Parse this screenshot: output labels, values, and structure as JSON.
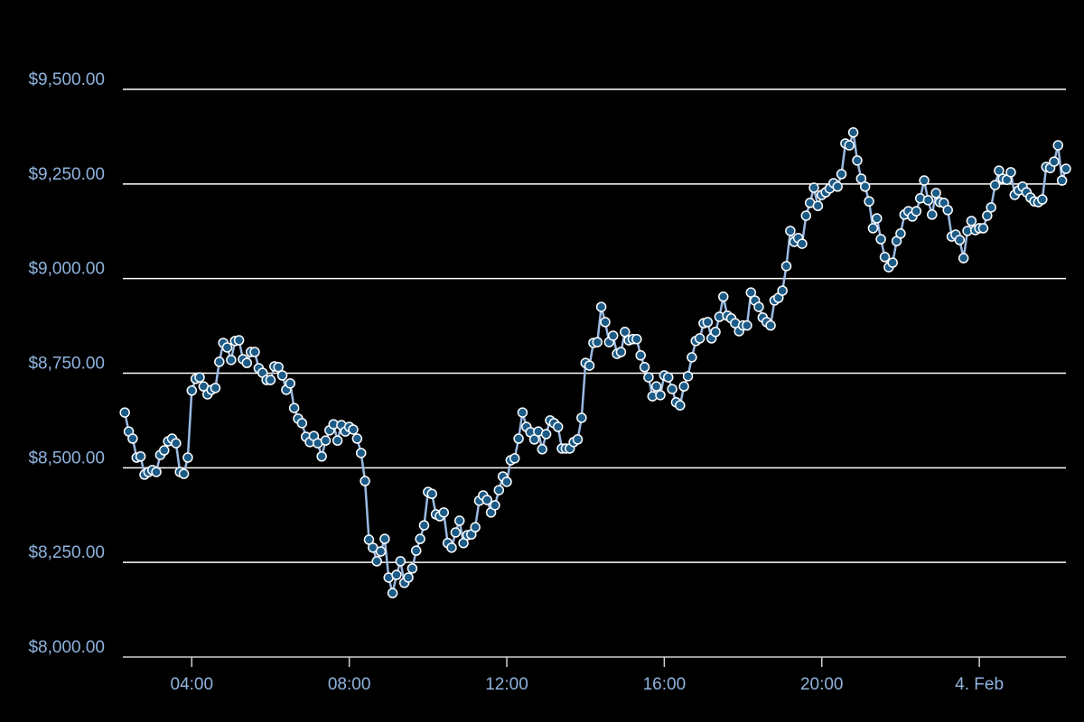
{
  "chart_data": {
    "type": "line",
    "x": [
      2.3,
      2.4,
      2.5,
      2.6,
      2.7,
      2.8,
      2.9,
      3.0,
      3.1,
      3.2,
      3.3,
      3.4,
      3.5,
      3.6,
      3.7,
      3.8,
      3.9,
      4.0,
      4.1,
      4.2,
      4.3,
      4.4,
      4.5,
      4.6,
      4.7,
      4.8,
      4.9,
      5.0,
      5.1,
      5.2,
      5.3,
      5.4,
      5.5,
      5.6,
      5.7,
      5.8,
      5.9,
      6.0,
      6.1,
      6.2,
      6.3,
      6.4,
      6.5,
      6.6,
      6.7,
      6.8,
      6.9,
      7.0,
      7.1,
      7.2,
      7.3,
      7.4,
      7.5,
      7.6,
      7.7,
      7.8,
      7.9,
      8.0,
      8.1,
      8.2,
      8.3,
      8.4,
      8.5,
      8.6,
      8.7,
      8.8,
      8.9,
      9.0,
      9.1,
      9.2,
      9.3,
      9.4,
      9.5,
      9.6,
      9.7,
      9.8,
      9.9,
      10.0,
      10.1,
      10.2,
      10.3,
      10.4,
      10.5,
      10.6,
      10.7,
      10.8,
      10.9,
      11.0,
      11.1,
      11.2,
      11.3,
      11.4,
      11.5,
      11.6,
      11.7,
      11.8,
      11.9,
      12.0,
      12.1,
      12.2,
      12.3,
      12.4,
      12.5,
      12.6,
      12.7,
      12.8,
      12.9,
      13.0,
      13.1,
      13.2,
      13.3,
      13.4,
      13.5,
      13.6,
      13.7,
      13.8,
      13.9,
      14.0,
      14.1,
      14.2,
      14.3,
      14.4,
      14.5,
      14.6,
      14.7,
      14.8,
      14.9,
      15.0,
      15.1,
      15.2,
      15.3,
      15.4,
      15.5,
      15.6,
      15.7,
      15.8,
      15.9,
      16.0,
      16.1,
      16.2,
      16.3,
      16.4,
      16.5,
      16.6,
      16.7,
      16.8,
      16.9,
      17.0,
      17.1,
      17.2,
      17.3,
      17.4,
      17.5,
      17.6,
      17.7,
      17.8,
      17.9,
      18.0,
      18.1,
      18.2,
      18.3,
      18.4,
      18.5,
      18.6,
      18.7,
      18.8,
      18.9,
      19.0,
      19.1,
      19.2,
      19.3,
      19.4,
      19.5,
      19.6,
      19.7,
      19.8,
      19.9,
      20.0,
      20.1,
      20.2,
      20.3,
      20.4,
      20.5,
      20.6,
      20.7,
      20.8,
      20.9,
      21.0,
      21.1,
      21.2,
      21.3,
      21.4,
      21.5,
      21.6,
      21.7,
      21.8,
      21.9,
      22.0,
      22.1,
      22.2,
      22.3,
      22.4,
      22.5,
      22.6,
      22.7,
      22.8,
      22.9,
      23.0,
      23.1,
      23.2,
      23.3,
      23.4,
      23.5,
      23.6,
      23.7,
      23.8,
      23.9,
      24.0,
      24.1,
      24.2,
      24.3,
      24.4,
      24.5,
      24.6,
      24.7,
      24.8,
      24.9,
      25.0,
      25.1,
      25.2,
      25.3,
      25.4,
      25.5,
      25.6,
      25.7,
      25.8,
      25.9,
      26.0,
      26.1,
      26.2
    ],
    "series": [
      {
        "color": "#9ab9e2",
        "marker_color": "#1d5b87",
        "values": [
          8646,
          8596,
          8577,
          8527,
          8530,
          8482,
          8489,
          8494,
          8489,
          8534,
          8546,
          8570,
          8577,
          8565,
          8489,
          8484,
          8527,
          8704,
          8735,
          8739,
          8715,
          8694,
          8706,
          8711,
          8780,
          8830,
          8818,
          8785,
          8835,
          8837,
          8787,
          8777,
          8806,
          8806,
          8763,
          8751,
          8732,
          8732,
          8768,
          8766,
          8744,
          8706,
          8723,
          8658,
          8630,
          8618,
          8582,
          8568,
          8584,
          8565,
          8530,
          8572,
          8599,
          8615,
          8572,
          8613,
          8596,
          8608,
          8601,
          8577,
          8539,
          8465,
          8310,
          8289,
          8253,
          8279,
          8312,
          8210,
          8169,
          8217,
          8253,
          8196,
          8210,
          8234,
          8281,
          8312,
          8348,
          8436,
          8431,
          8377,
          8372,
          8382,
          8301,
          8289,
          8329,
          8360,
          8301,
          8322,
          8324,
          8343,
          8413,
          8427,
          8415,
          8382,
          8401,
          8441,
          8477,
          8463,
          8520,
          8525,
          8577,
          8646,
          8608,
          8594,
          8575,
          8596,
          8549,
          8589,
          8625,
          8618,
          8608,
          8551,
          8551,
          8551,
          8568,
          8575,
          8632,
          8777,
          8770,
          8830,
          8832,
          8925,
          8885,
          8832,
          8849,
          8801,
          8806,
          8859,
          8837,
          8840,
          8840,
          8797,
          8766,
          8739,
          8689,
          8715,
          8692,
          8744,
          8739,
          8708,
          8673,
          8665,
          8715,
          8742,
          8792,
          8835,
          8842,
          8882,
          8885,
          8842,
          8859,
          8899,
          8952,
          8902,
          8895,
          8882,
          8861,
          8876,
          8876,
          8963,
          8942,
          8925,
          8897,
          8885,
          8876,
          8942,
          8949,
          8968,
          9033,
          9126,
          9097,
          9107,
          9092,
          9166,
          9200,
          9240,
          9192,
          9221,
          9228,
          9238,
          9252,
          9243,
          9276,
          9357,
          9352,
          9386,
          9312,
          9264,
          9243,
          9204,
          9133,
          9159,
          9104,
          9057,
          9030,
          9042,
          9099,
          9119,
          9169,
          9178,
          9164,
          9178,
          9212,
          9259,
          9207,
          9169,
          9226,
          9202,
          9200,
          9181,
          9111,
          9116,
          9102,
          9054,
          9126,
          9152,
          9128,
          9133,
          9133,
          9166,
          9188,
          9247,
          9285,
          9264,
          9261,
          9281,
          9221,
          9233,
          9243,
          9228,
          9214,
          9204,
          9202,
          9209,
          9295,
          9292,
          9309,
          9352,
          9259,
          9290
        ]
      }
    ],
    "xlim": [
      2.25,
      26.2
    ],
    "xticks": [
      {
        "value": 4,
        "label": "04:00"
      },
      {
        "value": 8,
        "label": "08:00"
      },
      {
        "value": 12,
        "label": "12:00"
      },
      {
        "value": 16,
        "label": "16:00"
      },
      {
        "value": 20,
        "label": "20:00"
      },
      {
        "value": 24,
        "label": "4. Feb"
      }
    ],
    "ylim": [
      8000,
      9500
    ],
    "yticks": [
      {
        "value": 8000,
        "label": "$8,000.00"
      },
      {
        "value": 8250,
        "label": "$8,250.00"
      },
      {
        "value": 8500,
        "label": "$8,500.00"
      },
      {
        "value": 8750,
        "label": "$8,750.00"
      },
      {
        "value": 9000,
        "label": "$9,000.00"
      },
      {
        "value": 9250,
        "label": "$9,250.00"
      },
      {
        "value": 9500,
        "label": "$9,500.00"
      }
    ],
    "grid": true
  }
}
